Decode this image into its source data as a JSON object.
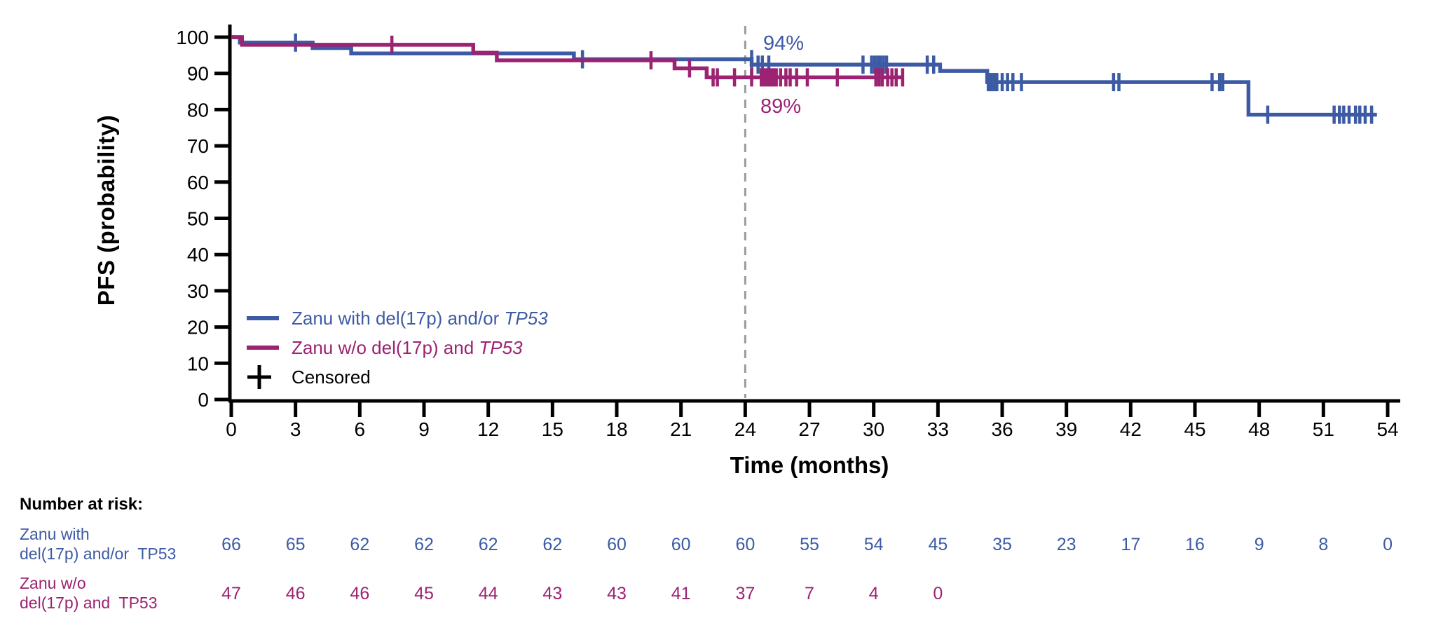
{
  "chart_data": {
    "type": "line",
    "subtype": "kaplan-meier-step",
    "title": "",
    "xlabel": "Time (months)",
    "ylabel": "PFS (probability)",
    "xlim": [
      0,
      54
    ],
    "ylim": [
      0,
      100
    ],
    "x_ticks": [
      0,
      3,
      6,
      9,
      12,
      15,
      18,
      21,
      24,
      27,
      30,
      33,
      36,
      39,
      42,
      45,
      48,
      51,
      54
    ],
    "y_ticks": [
      0,
      10,
      20,
      30,
      40,
      50,
      60,
      70,
      80,
      90,
      100
    ],
    "grid": false,
    "legend_position": "inside-lower-left",
    "reference_line": {
      "x": 24,
      "style": "dashed",
      "color": "#9a9a9a"
    },
    "annotations": [
      {
        "text": "94%",
        "x": 25.8,
        "y": 97.5,
        "color": "#3D5BA4",
        "refers_to": "Zanu with del(17p) and/or TP53 at 24 months"
      },
      {
        "text": "89%",
        "x": 25.6,
        "y": 80.5,
        "color": "#9C2272",
        "refers_to": "Zanu w/o del(17p) and TP53 at 24 months"
      }
    ],
    "series": [
      {
        "name": "Zanu with del(17p) and/or TP53",
        "color": "#3D5BA4",
        "steps": [
          [
            0,
            100
          ],
          [
            0.4,
            98.5
          ],
          [
            3.8,
            97.0
          ],
          [
            5.6,
            95.5
          ],
          [
            16.0,
            93.9
          ],
          [
            24.3,
            92.4
          ],
          [
            33.1,
            90.7
          ],
          [
            35.3,
            87.6
          ],
          [
            47.5,
            78.6
          ]
        ],
        "end_time": 53.5,
        "censor_times": [
          3.0,
          16.4,
          24.6,
          24.8,
          25.1,
          29.5,
          29.9,
          30.05,
          30.2,
          30.3,
          30.45,
          30.6,
          32.5,
          32.8,
          35.35,
          35.45,
          35.55,
          35.65,
          35.75,
          36.0,
          36.25,
          36.5,
          36.9,
          41.2,
          41.45,
          45.8,
          46.15,
          46.3,
          48.4,
          51.5,
          51.75,
          51.95,
          52.2,
          52.5,
          52.7,
          52.95,
          53.25
        ],
        "tall_censor_times": [
          24.3
        ],
        "value_at_24_months": "94%"
      },
      {
        "name": "Zanu w/o del(17p) and TP53",
        "color": "#9C2272",
        "steps": [
          [
            0,
            100
          ],
          [
            0.5,
            97.9
          ],
          [
            11.3,
            95.7
          ],
          [
            12.4,
            93.6
          ],
          [
            20.7,
            91.4
          ],
          [
            22.2,
            88.9
          ]
        ],
        "end_time": 31.4,
        "censor_times": [
          7.5,
          19.6,
          21.4,
          22.5,
          22.7,
          23.5,
          24.3,
          24.75,
          24.85,
          24.95,
          25.05,
          25.15,
          25.25,
          25.35,
          25.45,
          25.65,
          25.9,
          26.1,
          26.4,
          26.9,
          28.3,
          30.1,
          30.25,
          30.4,
          30.65,
          30.85,
          31.05,
          31.35
        ],
        "tall_censor_times": [],
        "value_at_24_months": "89%"
      }
    ]
  },
  "legend": {
    "items": [
      {
        "type": "line",
        "color": "#3D5BA4",
        "label": "Zanu with del(17p) and/or ",
        "label_italic": "TP53"
      },
      {
        "type": "line",
        "color": "#9C2272",
        "label": "Zanu w/o del(17p) and ",
        "label_italic": "TP53"
      },
      {
        "type": "plus",
        "color": "#000000",
        "label": "Censored",
        "label_italic": ""
      }
    ]
  },
  "risk_table": {
    "title": "Number at risk:",
    "rows": [
      {
        "label_line1": "Zanu with",
        "label_line2": "del(17p) and/or  TP53",
        "color": "#3D5BA4",
        "counts": [
          "66",
          "65",
          "62",
          "62",
          "62",
          "62",
          "60",
          "60",
          "60",
          "55",
          "54",
          "45",
          "35",
          "23",
          "17",
          "16",
          "9",
          "8",
          "0"
        ]
      },
      {
        "label_line1": "Zanu w/o",
        "label_line2": "del(17p) and  TP53",
        "color": "#9C2272",
        "counts": [
          "47",
          "46",
          "46",
          "45",
          "44",
          "43",
          "43",
          "41",
          "37",
          "7",
          "4",
          "0"
        ]
      }
    ]
  }
}
